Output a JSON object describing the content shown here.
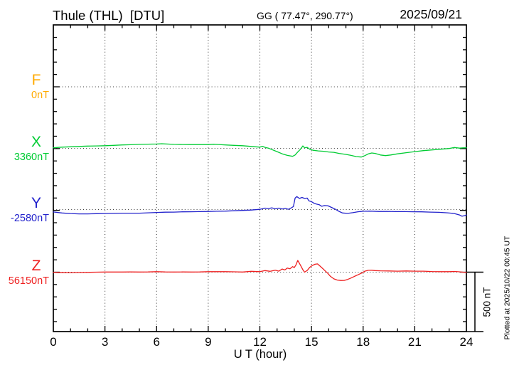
{
  "header": {
    "station_title": "Thule (THL)  [DTU]",
    "coords": "GG ( 77.47°, 290.77°)",
    "date": "2025/09/21"
  },
  "scale_bar": {
    "label": "500 nT",
    "value_nT": 500
  },
  "footer_note": "Plotted at 2025/10/22 00:45 UT",
  "chart_data": {
    "type": "line",
    "title": "Thule (THL) [DTU] magnetogram",
    "date": "2025/09/21",
    "xlabel": "U T (hour)",
    "unit": "nT",
    "xlim": [
      0,
      24
    ],
    "x_ticks": [
      0,
      3,
      6,
      9,
      12,
      15,
      18,
      21,
      24
    ],
    "x_gridlines": [
      3,
      6,
      9,
      12,
      15,
      18,
      21
    ],
    "y_tick_interval_nT": 100,
    "scale_bar_nT": 500,
    "grid": "dotted",
    "series": [
      {
        "name": "F",
        "color": "#ffaa00",
        "baseline_nT": 0,
        "baseline_label": "0nT",
        "points_delta_nT": []
      },
      {
        "name": "X",
        "color": "#00cc33",
        "baseline_nT": 3360,
        "baseline_label": "3360nT",
        "points_delta_nT": [
          [
            0,
            5
          ],
          [
            0.5,
            10
          ],
          [
            1,
            13
          ],
          [
            1.5,
            16
          ],
          [
            2,
            19
          ],
          [
            2.5,
            20
          ],
          [
            3,
            22
          ],
          [
            3.5,
            25
          ],
          [
            4,
            28
          ],
          [
            4.5,
            30
          ],
          [
            5,
            33
          ],
          [
            5.5,
            35
          ],
          [
            6,
            36
          ],
          [
            6.3,
            38
          ],
          [
            6.6,
            36
          ],
          [
            7,
            33
          ],
          [
            7.5,
            32
          ],
          [
            8,
            31
          ],
          [
            8.5,
            31
          ],
          [
            9,
            31
          ],
          [
            9.3,
            34
          ],
          [
            9.6,
            32
          ],
          [
            10,
            28
          ],
          [
            10.5,
            25
          ],
          [
            11,
            22
          ],
          [
            11.5,
            16
          ],
          [
            12,
            10
          ],
          [
            12.15,
            17
          ],
          [
            12.3,
            8
          ],
          [
            12.5,
            2
          ],
          [
            12.7,
            -10
          ],
          [
            13,
            -27
          ],
          [
            13.3,
            -45
          ],
          [
            13.6,
            -58
          ],
          [
            13.9,
            -66
          ],
          [
            14.05,
            -55
          ],
          [
            14.2,
            -30
          ],
          [
            14.35,
            -8
          ],
          [
            14.45,
            10
          ],
          [
            14.5,
            20
          ],
          [
            14.6,
            5
          ],
          [
            14.75,
            8
          ],
          [
            14.9,
            -7
          ],
          [
            15.1,
            -16
          ],
          [
            15.4,
            -21
          ],
          [
            15.7,
            -24
          ],
          [
            16,
            -30
          ],
          [
            16.3,
            -33
          ],
          [
            16.6,
            -42
          ],
          [
            17,
            -50
          ],
          [
            17.3,
            -58
          ],
          [
            17.6,
            -68
          ],
          [
            17.9,
            -72
          ],
          [
            18.1,
            -60
          ],
          [
            18.3,
            -46
          ],
          [
            18.5,
            -38
          ],
          [
            18.7,
            -42
          ],
          [
            19,
            -55
          ],
          [
            19.3,
            -60
          ],
          [
            19.6,
            -55
          ],
          [
            20,
            -45
          ],
          [
            20.5,
            -36
          ],
          [
            21,
            -27
          ],
          [
            21.5,
            -19
          ],
          [
            22,
            -13
          ],
          [
            22.5,
            -7
          ],
          [
            23,
            -1
          ],
          [
            23.3,
            7
          ],
          [
            23.6,
            2
          ],
          [
            23.8,
            4
          ],
          [
            24,
            5
          ]
        ]
      },
      {
        "name": "Y",
        "color": "#2222cc",
        "baseline_nT": -2580,
        "baseline_label": "-2580nT",
        "points_delta_nT": [
          [
            0,
            -20
          ],
          [
            0.5,
            -28
          ],
          [
            1,
            -33
          ],
          [
            1.5,
            -36
          ],
          [
            2,
            -36
          ],
          [
            2.5,
            -34
          ],
          [
            3,
            -33
          ],
          [
            3.5,
            -32
          ],
          [
            4,
            -30
          ],
          [
            4.5,
            -30
          ],
          [
            5,
            -30
          ],
          [
            5.5,
            -27
          ],
          [
            6,
            -24
          ],
          [
            6.5,
            -22
          ],
          [
            7,
            -21
          ],
          [
            7.5,
            -19
          ],
          [
            8,
            -18
          ],
          [
            8.5,
            -17
          ],
          [
            9,
            -16
          ],
          [
            9.5,
            -14
          ],
          [
            10,
            -13
          ],
          [
            10.5,
            -10
          ],
          [
            11,
            -7
          ],
          [
            11.5,
            -4
          ],
          [
            12,
            2
          ],
          [
            12.3,
            12
          ],
          [
            12.5,
            8
          ],
          [
            12.7,
            14
          ],
          [
            12.9,
            6
          ],
          [
            13.1,
            12
          ],
          [
            13.3,
            4
          ],
          [
            13.5,
            10
          ],
          [
            13.65,
            2
          ],
          [
            13.8,
            12
          ],
          [
            13.95,
            25
          ],
          [
            14.05,
            95
          ],
          [
            14.15,
            107
          ],
          [
            14.3,
            92
          ],
          [
            14.45,
            100
          ],
          [
            14.6,
            92
          ],
          [
            14.75,
            95
          ],
          [
            14.85,
            72
          ],
          [
            15,
            65
          ],
          [
            15.15,
            52
          ],
          [
            15.3,
            45
          ],
          [
            15.45,
            40
          ],
          [
            15.6,
            27
          ],
          [
            15.75,
            33
          ],
          [
            15.95,
            32
          ],
          [
            16.15,
            18
          ],
          [
            16.35,
            5
          ],
          [
            16.6,
            -15
          ],
          [
            16.8,
            -28
          ],
          [
            17.1,
            -32
          ],
          [
            17.4,
            -26
          ],
          [
            17.7,
            -18
          ],
          [
            18,
            -14
          ],
          [
            18.4,
            -13
          ],
          [
            18.9,
            -16
          ],
          [
            19.4,
            -15
          ],
          [
            19.9,
            -17
          ],
          [
            20.4,
            -17
          ],
          [
            20.9,
            -18
          ],
          [
            21.4,
            -19
          ],
          [
            21.9,
            -21
          ],
          [
            22.4,
            -23
          ],
          [
            22.9,
            -27
          ],
          [
            23.3,
            -33
          ],
          [
            23.6,
            -45
          ],
          [
            23.75,
            -55
          ],
          [
            23.9,
            -50
          ],
          [
            24,
            -45
          ]
        ]
      },
      {
        "name": "Z",
        "color": "#ee2020",
        "baseline_nT": 56150,
        "baseline_label": "56150nT",
        "points_delta_nT": [
          [
            0,
            -2
          ],
          [
            0.5,
            -4
          ],
          [
            1,
            -5
          ],
          [
            1.5,
            -3
          ],
          [
            2,
            -2
          ],
          [
            2.5,
            0
          ],
          [
            3,
            1
          ],
          [
            3.5,
            1
          ],
          [
            4,
            1
          ],
          [
            4.5,
            2
          ],
          [
            5,
            1
          ],
          [
            5.5,
            2
          ],
          [
            6,
            4
          ],
          [
            6.5,
            2
          ],
          [
            7,
            1
          ],
          [
            7.5,
            2
          ],
          [
            8,
            1
          ],
          [
            8.5,
            2
          ],
          [
            9,
            4
          ],
          [
            9.5,
            4
          ],
          [
            10,
            4
          ],
          [
            10.5,
            3
          ],
          [
            11,
            1
          ],
          [
            11.5,
            7
          ],
          [
            12,
            4
          ],
          [
            12.3,
            13
          ],
          [
            12.6,
            7
          ],
          [
            12.9,
            16
          ],
          [
            13.1,
            8
          ],
          [
            13.3,
            26
          ],
          [
            13.45,
            18
          ],
          [
            13.6,
            34
          ],
          [
            13.75,
            28
          ],
          [
            13.9,
            46
          ],
          [
            14,
            38
          ],
          [
            14.1,
            60
          ],
          [
            14.2,
            97
          ],
          [
            14.35,
            60
          ],
          [
            14.5,
            20
          ],
          [
            14.6,
            0
          ],
          [
            14.75,
            14
          ],
          [
            14.9,
            40
          ],
          [
            15.05,
            55
          ],
          [
            15.2,
            65
          ],
          [
            15.35,
            68
          ],
          [
            15.5,
            50
          ],
          [
            15.65,
            30
          ],
          [
            15.8,
            10
          ],
          [
            15.95,
            -10
          ],
          [
            16.1,
            -35
          ],
          [
            16.3,
            -55
          ],
          [
            16.5,
            -65
          ],
          [
            16.7,
            -69
          ],
          [
            16.9,
            -68
          ],
          [
            17.1,
            -60
          ],
          [
            17.3,
            -48
          ],
          [
            17.5,
            -35
          ],
          [
            17.7,
            -22
          ],
          [
            17.9,
            -8
          ],
          [
            18.1,
            8
          ],
          [
            18.3,
            15
          ],
          [
            18.5,
            16
          ],
          [
            18.7,
            13
          ],
          [
            19,
            11
          ],
          [
            19.5,
            10
          ],
          [
            20,
            8
          ],
          [
            20.5,
            10
          ],
          [
            21,
            8
          ],
          [
            21.5,
            8
          ],
          [
            22,
            5
          ],
          [
            22.5,
            4
          ],
          [
            23,
            4
          ],
          [
            23.3,
            6
          ],
          [
            23.6,
            3
          ],
          [
            23.8,
            0
          ],
          [
            24,
            -3
          ]
        ]
      }
    ]
  }
}
